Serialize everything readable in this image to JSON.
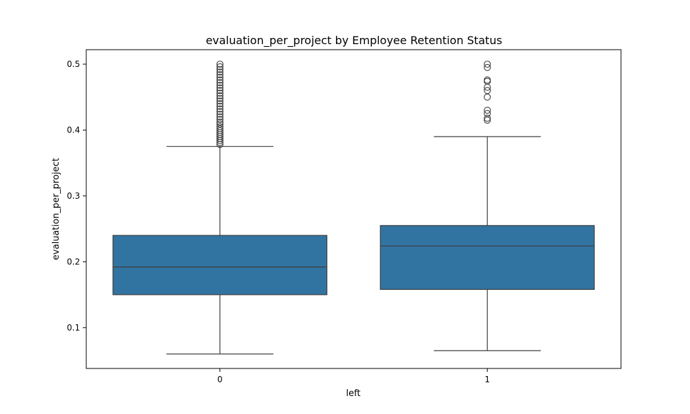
{
  "chart_data": {
    "type": "box",
    "title": "evaluation_per_project by Employee Retention Status",
    "xlabel": "left",
    "ylabel": "evaluation_per_project",
    "categories": [
      "0",
      "1"
    ],
    "ylim": [
      0.038,
      0.522
    ],
    "yticks": [
      0.1,
      0.2,
      0.3,
      0.4,
      0.5
    ],
    "ytick_labels": [
      "0.1",
      "0.2",
      "0.3",
      "0.4",
      "0.5"
    ],
    "grid": false,
    "legend": "none",
    "box_color": "#3274a1",
    "line_color": "#3d3d3d",
    "boxes": [
      {
        "category": "0",
        "whisker_low": 0.06,
        "q1": 0.15,
        "median": 0.192,
        "q3": 0.24,
        "whisker_high": 0.375,
        "outliers": [
          0.378,
          0.381,
          0.384,
          0.387,
          0.39,
          0.393,
          0.396,
          0.399,
          0.402,
          0.405,
          0.409,
          0.412,
          0.416,
          0.42,
          0.424,
          0.428,
          0.432,
          0.436,
          0.44,
          0.444,
          0.448,
          0.452,
          0.456,
          0.46,
          0.464,
          0.468,
          0.472,
          0.476,
          0.48,
          0.484,
          0.488,
          0.492,
          0.496,
          0.5
        ]
      },
      {
        "category": "1",
        "whisker_low": 0.065,
        "q1": 0.158,
        "median": 0.224,
        "q3": 0.255,
        "whisker_high": 0.39,
        "outliers": [
          0.415,
          0.418,
          0.425,
          0.43,
          0.45,
          0.46,
          0.465,
          0.474,
          0.476,
          0.495,
          0.5
        ]
      }
    ]
  }
}
